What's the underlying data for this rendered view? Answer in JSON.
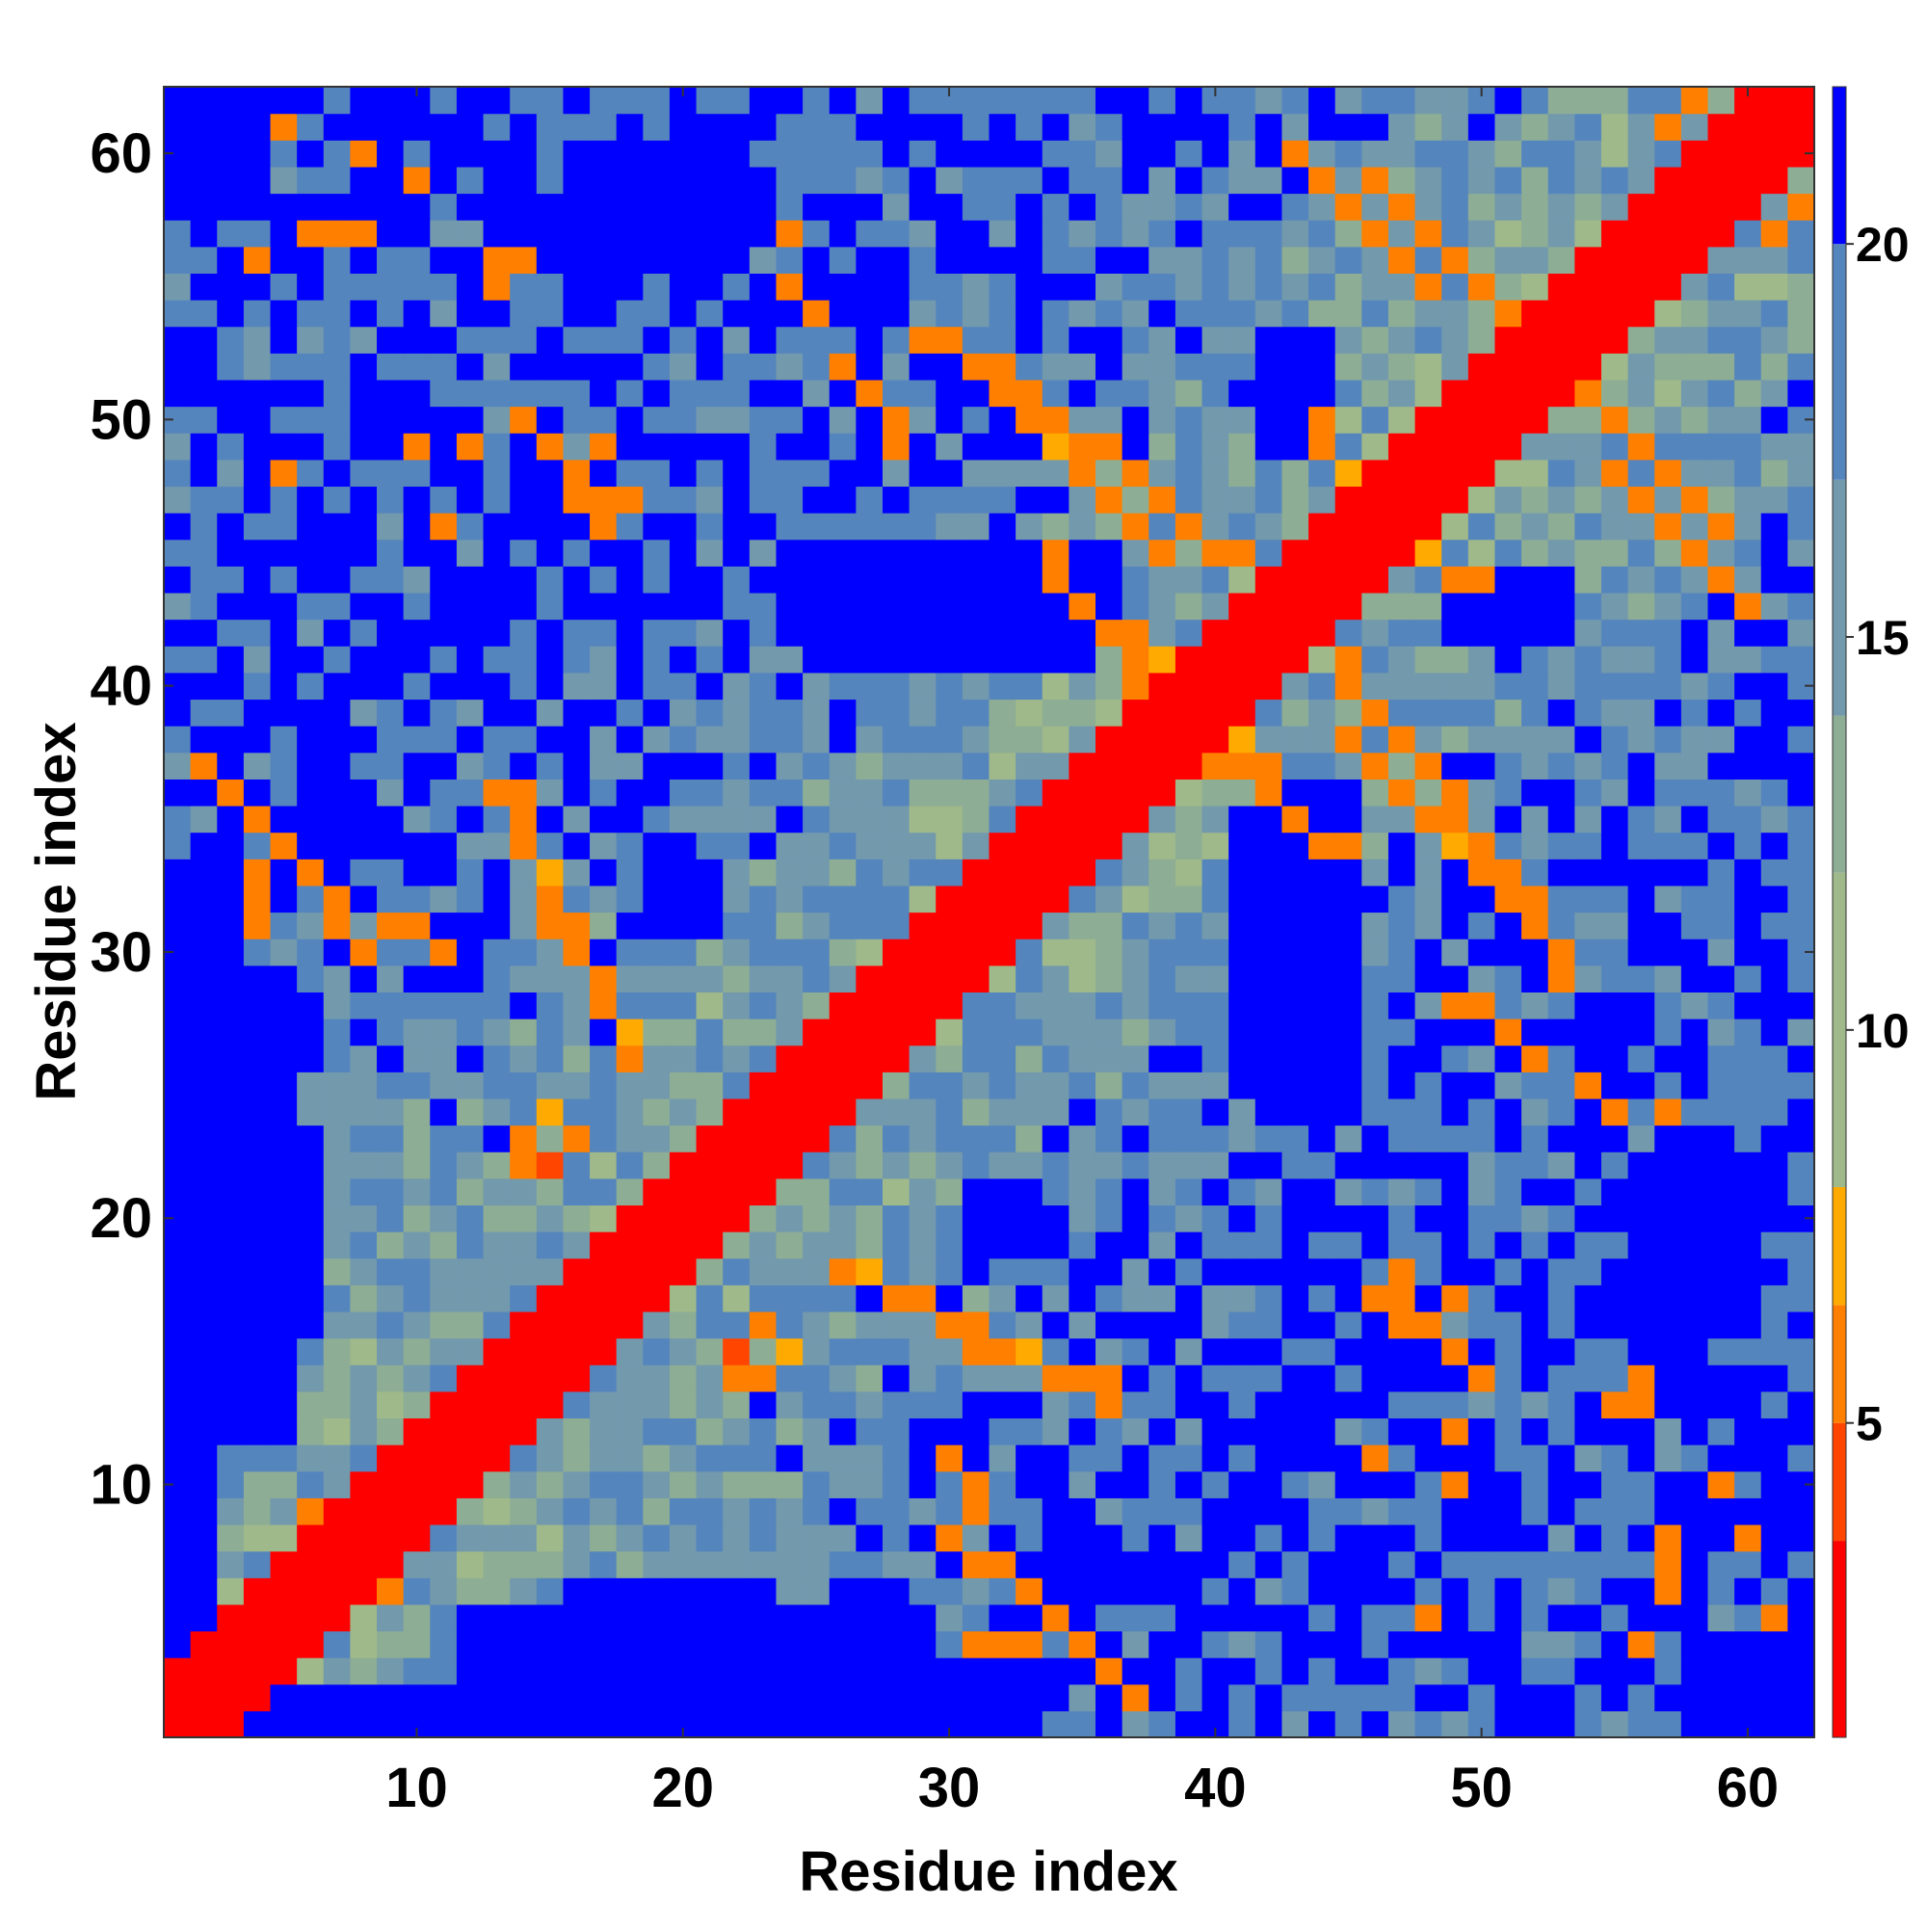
{
  "chart_data": {
    "type": "heatmap",
    "title": "",
    "xlabel": "Residue index",
    "ylabel": "Residue index",
    "n": 62,
    "xlim": [
      0.5,
      62.5
    ],
    "ylim": [
      0.5,
      62.5
    ],
    "x_ticks": [
      10,
      20,
      30,
      40,
      50,
      60
    ],
    "y_ticks": [
      10,
      20,
      30,
      40,
      50,
      60
    ],
    "x_tick_labels": [
      "10",
      "20",
      "30",
      "40",
      "50",
      "60"
    ],
    "y_tick_labels": [
      "10",
      "20",
      "30",
      "40",
      "50",
      "60"
    ],
    "colorbar": {
      "range": [
        1,
        22
      ],
      "ticks": [
        5,
        10,
        15,
        20
      ],
      "tick_labels": [
        "5",
        "10",
        "15",
        "20"
      ],
      "bins": [
        {
          "max": 3.5,
          "color": "#ff0000"
        },
        {
          "max": 5.0,
          "color": "#ff4500"
        },
        {
          "max": 6.5,
          "color": "#ff7f00"
        },
        {
          "max": 8.0,
          "color": "#ffaa00"
        },
        {
          "max": 12.0,
          "color": "#9fb98a"
        },
        {
          "max": 14.0,
          "color": "#8dad95"
        },
        {
          "max": 17.0,
          "color": "#7399ad"
        },
        {
          "max": 20.0,
          "color": "#5585bd"
        },
        {
          "max": 99.0,
          "color": "#0000ff"
        }
      ]
    },
    "diagonal_band_width": 2,
    "contacts": [
      [
        2,
        4,
        5.5
      ],
      [
        3,
        5,
        6
      ],
      [
        4,
        6,
        5
      ],
      [
        5,
        7,
        6.5
      ],
      [
        6,
        9,
        6
      ],
      [
        7,
        9,
        6.5
      ],
      [
        8,
        10,
        7
      ],
      [
        9,
        11,
        6
      ],
      [
        10,
        12,
        6
      ],
      [
        11,
        13,
        7
      ],
      [
        12,
        14,
        6
      ],
      [
        13,
        15,
        6
      ],
      [
        14,
        16,
        6.5
      ],
      [
        15,
        17,
        7
      ],
      [
        15,
        17,
        7.5
      ],
      [
        16,
        18,
        6
      ],
      [
        17,
        19,
        6
      ],
      [
        18,
        20,
        7
      ],
      [
        19,
        21,
        6
      ],
      [
        20,
        22,
        6
      ],
      [
        21,
        23,
        6
      ],
      [
        22,
        24,
        6
      ],
      [
        23,
        25,
        6.5
      ],
      [
        24,
        26,
        7
      ],
      [
        25,
        27,
        6
      ],
      [
        26,
        28,
        6
      ],
      [
        27,
        29,
        6.5
      ],
      [
        28,
        30,
        6.5
      ],
      [
        29,
        31,
        6
      ],
      [
        30,
        32,
        6
      ],
      [
        31,
        33,
        7
      ],
      [
        32,
        34,
        6
      ],
      [
        33,
        35,
        6
      ],
      [
        34,
        36,
        6
      ],
      [
        35,
        37,
        6
      ],
      [
        36,
        38,
        6
      ],
      [
        37,
        39,
        7
      ],
      [
        38,
        40,
        6
      ],
      [
        39,
        41,
        6
      ],
      [
        40,
        42,
        7
      ],
      [
        41,
        43,
        6
      ],
      [
        42,
        44,
        6
      ],
      [
        43,
        45,
        7
      ],
      [
        44,
        46,
        6
      ],
      [
        45,
        47,
        6
      ],
      [
        46,
        48,
        6
      ],
      [
        47,
        49,
        7
      ],
      [
        48,
        50,
        6
      ],
      [
        49,
        51,
        6
      ],
      [
        50,
        52,
        6
      ],
      [
        51,
        53,
        7
      ],
      [
        52,
        54,
        6
      ],
      [
        53,
        55,
        6
      ],
      [
        54,
        56,
        7
      ],
      [
        55,
        57,
        6
      ],
      [
        56,
        58,
        6
      ],
      [
        57,
        59,
        6
      ],
      [
        58,
        60,
        6
      ],
      [
        59,
        61,
        6
      ],
      [
        60,
        62,
        6
      ],
      [
        13,
        36,
        6
      ],
      [
        14,
        36,
        6
      ],
      [
        14,
        35,
        5.5
      ],
      [
        14,
        34,
        6
      ],
      [
        15,
        33,
        7
      ],
      [
        15,
        32,
        6
      ],
      [
        16,
        31,
        6
      ],
      [
        16,
        30,
        7
      ],
      [
        17,
        29,
        6
      ],
      [
        17,
        28,
        6
      ],
      [
        18,
        27,
        7
      ],
      [
        18,
        26,
        6
      ],
      [
        22,
        14,
        6.5
      ],
      [
        23,
        14,
        6
      ],
      [
        24,
        15,
        7
      ],
      [
        22,
        15,
        5
      ],
      [
        23,
        16,
        6
      ],
      [
        31,
        15,
        6.5
      ],
      [
        30,
        16,
        6
      ],
      [
        29,
        17,
        6
      ],
      [
        47,
        17,
        6.5
      ],
      [
        48,
        16,
        6
      ],
      [
        47,
        16,
        6
      ],
      [
        46,
        17,
        6
      ],
      [
        49,
        15,
        6.5
      ],
      [
        50,
        14,
        6
      ],
      [
        34,
        45,
        6.5
      ],
      [
        34,
        44,
        6
      ],
      [
        35,
        43,
        6
      ],
      [
        36,
        42,
        6.5
      ],
      [
        37,
        41,
        6
      ],
      [
        37,
        40,
        6
      ],
      [
        38,
        39,
        6.5
      ],
      [
        39,
        39,
        6
      ],
      [
        40,
        38,
        6
      ],
      [
        41,
        38,
        7
      ],
      [
        42,
        37,
        6
      ],
      [
        45,
        38,
        6.5
      ],
      [
        46,
        37,
        6
      ],
      [
        47,
        36,
        6
      ],
      [
        48,
        35,
        6
      ],
      [
        49,
        34,
        7
      ],
      [
        50,
        33,
        6
      ],
      [
        51,
        33,
        6
      ],
      [
        51,
        32,
        6
      ],
      [
        49,
        28,
        6
      ],
      [
        50,
        28,
        6
      ],
      [
        51,
        27,
        6
      ],
      [
        52,
        26,
        6
      ],
      [
        45,
        47,
        6
      ],
      [
        46,
        46,
        6
      ],
      [
        47,
        46,
        6
      ],
      [
        48,
        45,
        7
      ],
      [
        49,
        44,
        6
      ],
      [
        50,
        44,
        6
      ],
      [
        33,
        50,
        6
      ],
      [
        34,
        50,
        6
      ],
      [
        35,
        49,
        6
      ],
      [
        36,
        49,
        6
      ],
      [
        37,
        48,
        6
      ],
      [
        38,
        47,
        6
      ],
      [
        39,
        46,
        6
      ],
      [
        40,
        45,
        6
      ],
      [
        41,
        45,
        6
      ],
      [
        42,
        44,
        6
      ],
      [
        29,
        53,
        6
      ],
      [
        30,
        53,
        6
      ],
      [
        31,
        52,
        6
      ],
      [
        32,
        52,
        6
      ],
      [
        33,
        51,
        6
      ],
      [
        46,
        59,
        6
      ],
      [
        47,
        58,
        6
      ],
      [
        48,
        57,
        6
      ],
      [
        49,
        56,
        6
      ],
      [
        50,
        55,
        6
      ],
      [
        51,
        54,
        6
      ],
      [
        55,
        48,
        6
      ],
      [
        56,
        47,
        6
      ],
      [
        57,
        46,
        6
      ],
      [
        58,
        45,
        6
      ],
      [
        59,
        44,
        6
      ],
      [
        60,
        43,
        6
      ],
      [
        57,
        61,
        6
      ],
      [
        58,
        62,
        6
      ],
      [
        59,
        61,
        6
      ],
      [
        60,
        60,
        6
      ],
      [
        61,
        59,
        6
      ],
      [
        62,
        58,
        6
      ],
      [
        2,
        37,
        6
      ],
      [
        3,
        36,
        6
      ],
      [
        4,
        35,
        6
      ],
      [
        5,
        34,
        6
      ],
      [
        6,
        33,
        6
      ],
      [
        7,
        32,
        6
      ],
      [
        7,
        31,
        6
      ],
      [
        8,
        30,
        6
      ],
      [
        9,
        31,
        6
      ],
      [
        10,
        31,
        6
      ],
      [
        11,
        30,
        6
      ],
      [
        5,
        48,
        6
      ],
      [
        10,
        49,
        6
      ],
      [
        16,
        48,
        6
      ],
      [
        17,
        49,
        6
      ],
      [
        17,
        47,
        6
      ],
      [
        18,
        47,
        6
      ],
      [
        13,
        56,
        6
      ],
      [
        14,
        56,
        6
      ],
      [
        6,
        57,
        6
      ],
      [
        7,
        57,
        6
      ],
      [
        8,
        57,
        6
      ],
      [
        24,
        55,
        6
      ],
      [
        25,
        54,
        6
      ],
      [
        12,
        49,
        6
      ],
      [
        11,
        46,
        6
      ],
      [
        24,
        57,
        6
      ],
      [
        31,
        4,
        6
      ],
      [
        32,
        4,
        6
      ],
      [
        33,
        4,
        6
      ],
      [
        59,
        10,
        6
      ],
      [
        60,
        8,
        6
      ],
      [
        61,
        5,
        6
      ],
      [
        56,
        4,
        6
      ],
      [
        55,
        13,
        6
      ],
      [
        56,
        13,
        6
      ]
    ],
    "far_regions": [
      {
        "rows": [
          1,
          5
        ],
        "cols": [
          12,
          28
        ],
        "value": 21
      },
      {
        "rows": [
          1,
          3
        ],
        "cols": [
          29,
          33
        ],
        "value": 21
      },
      {
        "rows": [
          1,
          12
        ],
        "cols": [
          1,
          2
        ],
        "value": 21
      },
      {
        "rows": [
          16,
          22
        ],
        "cols": [
          1,
          6
        ],
        "value": 21
      },
      {
        "rows": [
          26,
          31
        ],
        "cols": [
          1,
          2
        ],
        "value": 21
      },
      {
        "rows": [
          42,
          45
        ],
        "cols": [
          24,
          36
        ],
        "value": 21
      },
      {
        "rows": [
          26,
          35
        ],
        "cols": [
          41,
          44
        ],
        "value": 21
      },
      {
        "rows": [
          49,
          53
        ],
        "cols": [
          42,
          43
        ],
        "value": 21
      },
      {
        "rows": [
          42,
          44
        ],
        "cols": [
          50,
          53
        ],
        "value": 21
      },
      {
        "rows": [
          58,
          62
        ],
        "cols": [
          1,
          3
        ],
        "value": 21
      },
      {
        "rows": [
          60,
          62
        ],
        "cols": [
          8,
          9
        ],
        "value": 21
      },
      {
        "rows": [
          56,
          60
        ],
        "cols": [
          16,
          22
        ],
        "value": 21
      },
      {
        "rows": [
          1,
          4
        ],
        "cols": [
          58,
          62
        ],
        "value": 21
      },
      {
        "rows": [
          14,
          16
        ],
        "cols": [
          56,
          58
        ],
        "value": 21
      },
      {
        "rows": [
          9,
          10
        ],
        "cols": [
          61,
          62
        ],
        "value": 21
      },
      {
        "rows": [
          19,
          21
        ],
        "cols": [
          31,
          33
        ],
        "value": 21
      }
    ]
  }
}
